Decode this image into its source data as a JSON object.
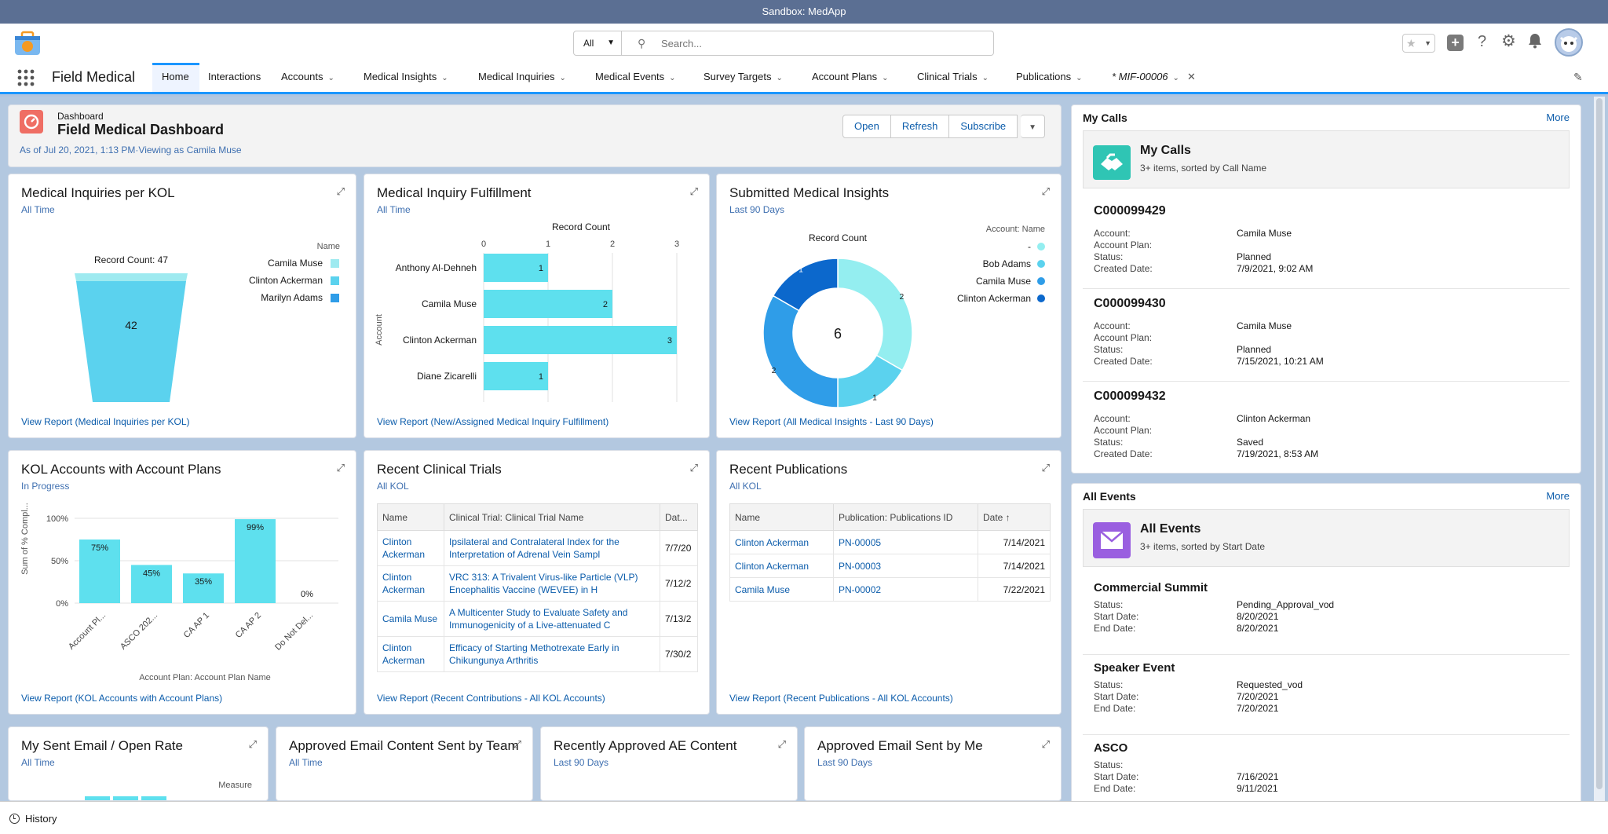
{
  "sandbox": "Sandbox: MedApp",
  "search": {
    "scope": "All",
    "placeholder": "Search..."
  },
  "app_name": "Field Medical",
  "tabs": [
    {
      "label": "Home",
      "chevron": false
    },
    {
      "label": "Interactions",
      "chevron": false
    },
    {
      "label": "Accounts",
      "chevron": true
    },
    {
      "label": "Medical Insights",
      "chevron": true
    },
    {
      "label": "Medical Inquiries",
      "chevron": true
    },
    {
      "label": "Medical Events",
      "chevron": true
    },
    {
      "label": "Survey Targets",
      "chevron": true
    },
    {
      "label": "Account Plans",
      "chevron": true
    },
    {
      "label": "Clinical Trials",
      "chevron": true
    },
    {
      "label": "Publications",
      "chevron": true
    },
    {
      "label": "* MIF-00006",
      "chevron": true
    }
  ],
  "dashboard": {
    "type": "Dashboard",
    "title": "Field Medical Dashboard",
    "asof": "As of Jul 20, 2021, 1:13 PM·Viewing as Camila Muse",
    "buttons": [
      "Open",
      "Refresh",
      "Subscribe"
    ]
  },
  "cards": {
    "kol": {
      "title": "Medical Inquiries per KOL",
      "sub": "All Time",
      "link": "View Report (Medical Inquiries per KOL)"
    },
    "fulfil": {
      "title": "Medical Inquiry Fulfillment",
      "sub": "All Time",
      "link": "View Report (New/Assigned Medical Inquiry Fulfillment)"
    },
    "insights": {
      "title": "Submitted Medical Insights",
      "sub": "Last 90 Days",
      "link": "View Report (All Medical Insights - Last 90 Days)"
    },
    "plans": {
      "title": "KOL Accounts with Account Plans",
      "sub": "In Progress",
      "link": "View Report (KOL Accounts with Account Plans)"
    },
    "trials": {
      "title": "Recent Clinical Trials",
      "sub": "All KOL",
      "link": "View Report (Recent Contributions - All KOL Accounts)"
    },
    "pubs": {
      "title": "Recent Publications",
      "sub": "All KOL",
      "link": "View Report (Recent Publications - All KOL Accounts)"
    },
    "email": {
      "title": "My Sent Email / Open Rate",
      "sub": "All Time",
      "measure": "Measure"
    },
    "approved_team": {
      "title": "Approved Email Content Sent by Team",
      "sub": "All Time"
    },
    "ae_content": {
      "title": "Recently Approved AE Content",
      "sub": "Last 90 Days"
    },
    "sent_me": {
      "title": "Approved Email Sent by Me",
      "sub": "Last 90 Days"
    }
  },
  "chart_data": [
    {
      "type": "funnel",
      "title": "Medical Inquiries per KOL",
      "label": "Record Count: 47",
      "legend_title": "Name",
      "series": [
        {
          "name": "Camila Muse",
          "color": "#9eeaf0"
        },
        {
          "name": "Clinton Ackerman",
          "color": "#5bd2ee"
        },
        {
          "name": "Marilyn Adams",
          "color": "#2f9de8"
        }
      ],
      "values": [
        42,
        3,
        2
      ],
      "center_label": "42"
    },
    {
      "type": "bar",
      "orientation": "horizontal",
      "title": "Medical Inquiry Fulfillment",
      "xlabel": "Record Count",
      "ylabel": "Account",
      "categories": [
        "Anthony Al-Dehneh",
        "Camila Muse",
        "Clinton Ackerman",
        "Diane Zicarelli"
      ],
      "values": [
        1,
        2,
        3,
        1
      ],
      "xlim": [
        0,
        3
      ],
      "xticks": [
        "0",
        "1",
        "2",
        "3"
      ],
      "color": "#5ee0ee"
    },
    {
      "type": "pie",
      "variant": "donut",
      "title": "Submitted Medical Insights",
      "label": "Record Count",
      "total": "6",
      "legend_title": "Account: Name",
      "series": [
        {
          "name": "-",
          "value": 2,
          "color": "#94eef0"
        },
        {
          "name": "Bob Adams",
          "value": 1,
          "color": "#5bd2ee"
        },
        {
          "name": "Camila Muse",
          "value": 2,
          "color": "#2f9de8"
        },
        {
          "name": "Clinton Ackerman",
          "value": 1,
          "color": "#0c68cc"
        }
      ]
    },
    {
      "type": "bar",
      "title": "KOL Accounts with Account Plans",
      "xlabel": "Account Plan: Account Plan Name",
      "ylabel": "Sum of % Compl...",
      "categories": [
        "Account Pl...",
        "ASCO 202...",
        "CA AP 1",
        "CA AP 2",
        "Do Not Del..."
      ],
      "values": [
        75,
        45,
        35,
        99,
        0
      ],
      "labels": [
        "75%",
        "45%",
        "35%",
        "99%",
        "0%"
      ],
      "ylim": [
        0,
        100
      ],
      "yticks": [
        "100%",
        "50%",
        "0%"
      ],
      "color": "#5ee0ee"
    }
  ],
  "trials": {
    "headers": [
      "Name",
      "Clinical Trial: Clinical Trial Name",
      "Dat..."
    ],
    "rows": [
      [
        "Clinton Ackerman",
        "Ipsilateral and Contralateral Index for the Interpretation of Adrenal Vein Sampl",
        "7/7/20"
      ],
      [
        "Clinton Ackerman",
        "VRC 313: A Trivalent Virus-like Particle (VLP) Encephalitis Vaccine (WEVEE) in H",
        "7/12/2"
      ],
      [
        "Camila Muse",
        "A Multicenter Study to Evaluate Safety and Immunogenicity of a Live-attenuated C",
        "7/13/2"
      ],
      [
        "Clinton Ackerman",
        "Efficacy of Starting Methotrexate Early in Chikungunya Arthritis",
        "7/30/2"
      ]
    ]
  },
  "pubs": {
    "headers": [
      "Name",
      "Publication: Publications ID",
      "Date ↑"
    ],
    "rows": [
      [
        "Clinton Ackerman",
        "PN-00005",
        "7/14/2021"
      ],
      [
        "Clinton Ackerman",
        "PN-00003",
        "7/14/2021"
      ],
      [
        "Camila Muse",
        "PN-00002",
        "7/22/2021"
      ]
    ]
  },
  "calls": {
    "panel": "My Calls",
    "more": "More",
    "title": "My Calls",
    "meta": "3+ items, sorted by Call Name",
    "fields": [
      "Account:",
      "Account Plan:",
      "Status:",
      "Created Date:"
    ],
    "items": [
      {
        "id": "C000099429",
        "account": "Camila Muse",
        "plan": "",
        "status": "Planned",
        "date": "7/9/2021, 9:02 AM"
      },
      {
        "id": "C000099430",
        "account": "Camila Muse",
        "plan": "",
        "status": "Planned",
        "date": "7/15/2021, 10:21 AM"
      },
      {
        "id": "C000099432",
        "account": "Clinton Ackerman",
        "plan": "",
        "status": "Saved",
        "date": "7/19/2021, 8:53 AM"
      }
    ]
  },
  "events": {
    "panel": "All Events",
    "more": "More",
    "title": "All Events",
    "meta": "3+ items, sorted by Start Date",
    "fields": [
      "Status:",
      "Start Date:",
      "End Date:"
    ],
    "items": [
      {
        "name": "Commercial Summit",
        "status": "Pending_Approval_vod",
        "start": "8/20/2021",
        "end": "8/20/2021"
      },
      {
        "name": "Speaker Event",
        "status": "Requested_vod",
        "start": "7/20/2021",
        "end": "7/20/2021"
      },
      {
        "name": "ASCO",
        "status": "",
        "start": "7/16/2021",
        "end": "9/11/2021"
      }
    ]
  },
  "history": "History"
}
